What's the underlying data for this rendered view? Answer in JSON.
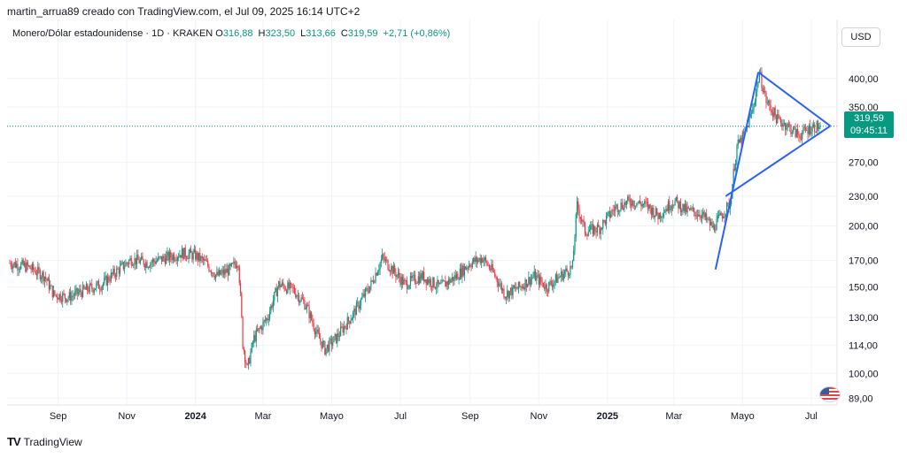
{
  "header": {
    "attribution": "martin_arrua89 creado con TradingView.com, el Jul 09, 2025 16:14 UTC+2"
  },
  "legend": {
    "symbol": "Monero/Dólar estadounidense · 1D · KRAKEN",
    "o_label": "O",
    "o_value": "316,88",
    "h_label": "H",
    "h_value": "323,50",
    "l_label": "L",
    "l_value": "313,66",
    "c_label": "C",
    "c_value": "319,59",
    "change": "+2,71 (+0,86%)"
  },
  "currency_button": "USD",
  "last_price": {
    "price": "319,59",
    "countdown": "09:45:11"
  },
  "footer": {
    "brand": "TradingView"
  },
  "colors": {
    "up": "#089981",
    "down": "#f23645",
    "pattern": "#2962ff",
    "grid": "#f0f3fa"
  },
  "chart_data": {
    "type": "candlestick",
    "y_scale": "log",
    "y_ticks": [
      {
        "label": "400,00",
        "value": 400
      },
      {
        "label": "350,00",
        "value": 350
      },
      {
        "label": "270,00",
        "value": 270
      },
      {
        "label": "230,00",
        "value": 230
      },
      {
        "label": "200,00",
        "value": 200
      },
      {
        "label": "170,00",
        "value": 170
      },
      {
        "label": "150,00",
        "value": 150
      },
      {
        "label": "130,00",
        "value": 130
      },
      {
        "label": "114,00",
        "value": 114
      },
      {
        "label": "100,00",
        "value": 100
      },
      {
        "label": "89,00",
        "value": 89
      }
    ],
    "x_ticks": [
      {
        "label": "Sep",
        "date": "2023-09-01",
        "bold": false
      },
      {
        "label": "Nov",
        "date": "2023-11-01",
        "bold": false
      },
      {
        "label": "2024",
        "date": "2024-01-01",
        "bold": true
      },
      {
        "label": "Mar",
        "date": "2024-03-01",
        "bold": false
      },
      {
        "label": "Mayo",
        "date": "2024-05-01",
        "bold": false
      },
      {
        "label": "Jul",
        "date": "2024-07-01",
        "bold": false
      },
      {
        "label": "Sep",
        "date": "2024-09-01",
        "bold": false
      },
      {
        "label": "Nov",
        "date": "2024-11-01",
        "bold": false
      },
      {
        "label": "2025",
        "date": "2025-01-01",
        "bold": true
      },
      {
        "label": "Mar",
        "date": "2025-03-01",
        "bold": false
      },
      {
        "label": "Mayo",
        "date": "2025-05-01",
        "bold": false
      },
      {
        "label": "Jul",
        "date": "2025-07-01",
        "bold": false
      }
    ],
    "price_path": [
      [
        "2023-07-20",
        168
      ],
      [
        "2023-08-05",
        165
      ],
      [
        "2023-08-20",
        158
      ],
      [
        "2023-08-28",
        145
      ],
      [
        "2023-09-10",
        143
      ],
      [
        "2023-09-25",
        148
      ],
      [
        "2023-10-10",
        152
      ],
      [
        "2023-10-25",
        163
      ],
      [
        "2023-11-05",
        171
      ],
      [
        "2023-11-20",
        168
      ],
      [
        "2023-12-05",
        172
      ],
      [
        "2023-12-20",
        176
      ],
      [
        "2024-01-01",
        174
      ],
      [
        "2024-01-10",
        168
      ],
      [
        "2024-01-20",
        158
      ],
      [
        "2024-02-01",
        163
      ],
      [
        "2024-02-08",
        170
      ],
      [
        "2024-02-12",
        115
      ],
      [
        "2024-02-16",
        102
      ],
      [
        "2024-02-22",
        118
      ],
      [
        "2024-03-05",
        130
      ],
      [
        "2024-03-15",
        152
      ],
      [
        "2024-03-28",
        148
      ],
      [
        "2024-04-08",
        138
      ],
      [
        "2024-04-18",
        120
      ],
      [
        "2024-04-25",
        112
      ],
      [
        "2024-05-05",
        118
      ],
      [
        "2024-05-20",
        132
      ],
      [
        "2024-06-05",
        152
      ],
      [
        "2024-06-15",
        172
      ],
      [
        "2024-06-25",
        162
      ],
      [
        "2024-07-05",
        152
      ],
      [
        "2024-07-20",
        158
      ],
      [
        "2024-08-05",
        150
      ],
      [
        "2024-08-20",
        158
      ],
      [
        "2024-09-01",
        168
      ],
      [
        "2024-09-12",
        172
      ],
      [
        "2024-09-22",
        160
      ],
      [
        "2024-10-02",
        145
      ],
      [
        "2024-10-15",
        150
      ],
      [
        "2024-10-28",
        158
      ],
      [
        "2024-11-08",
        150
      ],
      [
        "2024-11-20",
        158
      ],
      [
        "2024-12-01",
        165
      ],
      [
        "2024-12-05",
        220
      ],
      [
        "2024-12-12",
        195
      ],
      [
        "2024-12-25",
        198
      ],
      [
        "2025-01-08",
        218
      ],
      [
        "2025-01-22",
        225
      ],
      [
        "2025-02-05",
        220
      ],
      [
        "2025-02-15",
        210
      ],
      [
        "2025-03-01",
        225
      ],
      [
        "2025-03-12",
        215
      ],
      [
        "2025-03-25",
        212
      ],
      [
        "2025-04-05",
        198
      ],
      [
        "2025-04-12",
        210
      ],
      [
        "2025-04-20",
        222
      ],
      [
        "2025-04-26",
        290
      ],
      [
        "2025-05-03",
        308
      ],
      [
        "2025-05-10",
        345
      ],
      [
        "2025-05-16",
        410
      ],
      [
        "2025-05-22",
        360
      ],
      [
        "2025-06-01",
        330
      ],
      [
        "2025-06-10",
        320
      ],
      [
        "2025-06-20",
        306
      ],
      [
        "2025-07-01",
        318
      ],
      [
        "2025-07-09",
        319.59
      ]
    ],
    "last_close": 319.59,
    "pattern_lines": [
      {
        "from": [
          "2025-04-07",
          163
        ],
        "to": [
          "2025-05-15",
          412
        ]
      },
      {
        "from": [
          "2025-05-15",
          412
        ],
        "to": [
          "2025-07-18",
          320
        ]
      },
      {
        "from": [
          "2025-04-16",
          230
        ],
        "to": [
          "2025-07-18",
          320
        ]
      }
    ]
  }
}
